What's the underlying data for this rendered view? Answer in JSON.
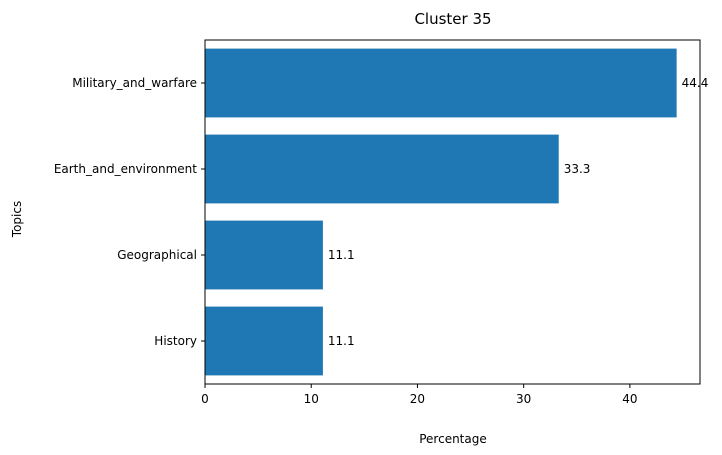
{
  "chart_data": {
    "type": "bar",
    "orientation": "horizontal",
    "title": "Cluster 35",
    "xlabel": "Percentage",
    "ylabel": "Topics",
    "categories": [
      "Military_and_warfare",
      "Earth_and_environment",
      "Geographical",
      "History"
    ],
    "values": [
      44.4,
      33.3,
      11.1,
      11.1
    ],
    "data_labels": [
      "44.4",
      "33.3",
      "11.1",
      "11.1"
    ],
    "x_ticks": [
      0,
      10,
      20,
      30,
      40
    ],
    "xlim": [
      0,
      46.6
    ],
    "grid": false,
    "bar_color": "#1f77b4"
  }
}
